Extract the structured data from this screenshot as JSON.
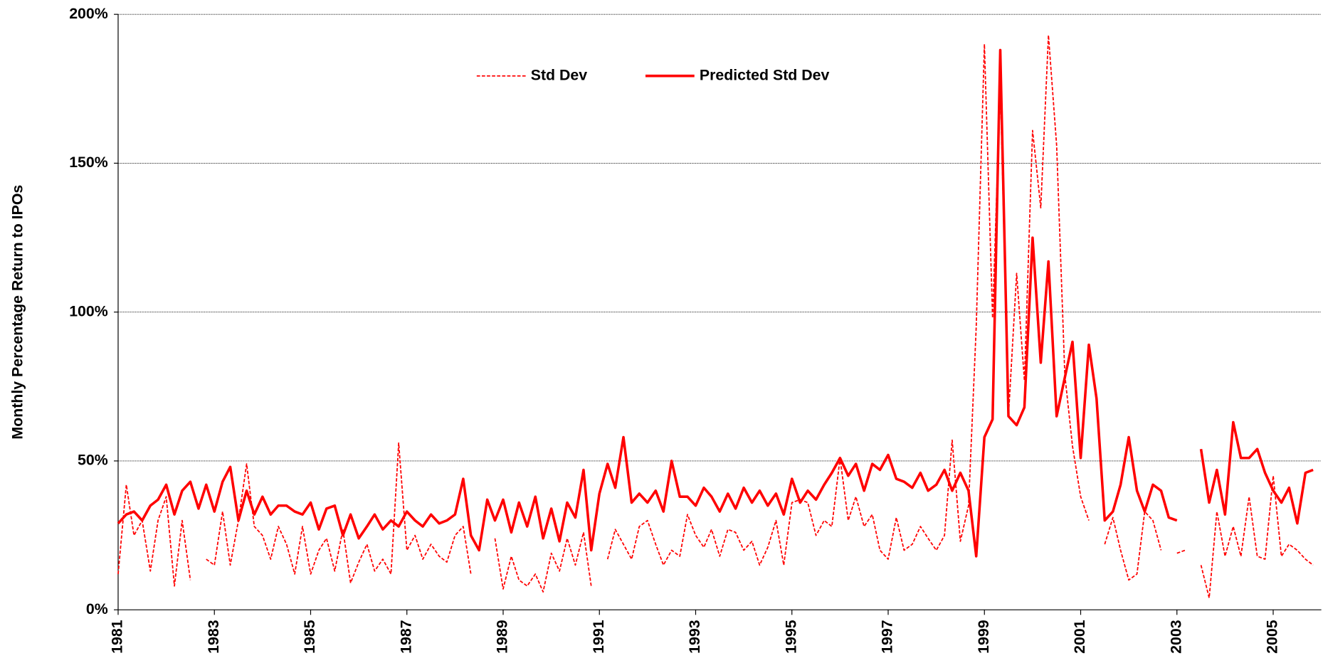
{
  "chart_data": {
    "type": "line",
    "y_label": "Monthly Percentage Return to IPOs",
    "ylim": [
      0,
      200
    ],
    "yticks": [
      {
        "value": 0,
        "label": "0%"
      },
      {
        "value": 50,
        "label": "50%"
      },
      {
        "value": 100,
        "label": "100%"
      },
      {
        "value": 150,
        "label": "150%"
      },
      {
        "value": 200,
        "label": "200%"
      }
    ],
    "xlim": [
      1981,
      2006
    ],
    "xticks": [
      1981,
      1983,
      1985,
      1987,
      1989,
      1991,
      1993,
      1995,
      1997,
      1999,
      2001,
      2003,
      2005
    ],
    "grid": true,
    "legend": "top",
    "x": [
      1981,
      1981.17,
      1981.33,
      1981.5,
      1981.67,
      1981.83,
      1982,
      1982.17,
      1982.33,
      1982.5,
      1982.67,
      1982.83,
      1983,
      1983.17,
      1983.33,
      1983.5,
      1983.67,
      1983.83,
      1984,
      1984.17,
      1984.33,
      1984.5,
      1984.67,
      1984.83,
      1985,
      1985.17,
      1985.33,
      1985.5,
      1985.67,
      1985.83,
      1986,
      1986.17,
      1986.33,
      1986.5,
      1986.67,
      1986.83,
      1987,
      1987.17,
      1987.33,
      1987.5,
      1987.67,
      1987.83,
      1988,
      1988.17,
      1988.33,
      1988.5,
      1988.67,
      1988.83,
      1989,
      1989.17,
      1989.33,
      1989.5,
      1989.67,
      1989.83,
      1990,
      1990.17,
      1990.33,
      1990.5,
      1990.67,
      1990.83,
      1991,
      1991.17,
      1991.33,
      1991.5,
      1991.67,
      1991.83,
      1992,
      1992.17,
      1992.33,
      1992.5,
      1992.67,
      1992.83,
      1993,
      1993.17,
      1993.33,
      1993.5,
      1993.67,
      1993.83,
      1994,
      1994.17,
      1994.33,
      1994.5,
      1994.67,
      1994.83,
      1995,
      1995.17,
      1995.33,
      1995.5,
      1995.67,
      1995.83,
      1996,
      1996.17,
      1996.33,
      1996.5,
      1996.67,
      1996.83,
      1997,
      1997.17,
      1997.33,
      1997.5,
      1997.67,
      1997.83,
      1998,
      1998.17,
      1998.33,
      1998.5,
      1998.67,
      1998.83,
      1999,
      1999.17,
      1999.33,
      1999.5,
      1999.67,
      1999.83,
      2000,
      2000.17,
      2000.33,
      2000.5,
      2000.67,
      2000.83,
      2001,
      2001.17,
      2001.33,
      2001.5,
      2001.67,
      2001.83,
      2002,
      2002.17,
      2002.33,
      2002.5,
      2002.67,
      2002.83,
      2003,
      2003.17,
      2003.33,
      2003.5,
      2003.67,
      2003.83,
      2004,
      2004.17,
      2004.33,
      2004.5,
      2004.67,
      2004.83,
      2005,
      2005.17,
      2005.33,
      2005.5,
      2005.67,
      2005.83
    ],
    "series": [
      {
        "name": "Std Dev",
        "color": "#ff0000",
        "line_style": "dashed",
        "values": [
          12,
          42,
          25,
          30,
          13,
          30,
          38,
          8,
          30,
          10,
          null,
          17,
          15,
          33,
          15,
          30,
          49,
          28,
          25,
          17,
          28,
          22,
          12,
          28,
          12,
          20,
          24,
          13,
          27,
          9,
          16,
          22,
          13,
          17,
          12,
          56,
          20,
          25,
          17,
          22,
          18,
          16,
          25,
          28,
          12,
          null,
          null,
          24,
          7,
          18,
          10,
          8,
          12,
          6,
          19,
          13,
          24,
          15,
          26,
          8,
          null,
          17,
          27,
          22,
          17,
          28,
          30,
          22,
          15,
          20,
          18,
          32,
          25,
          21,
          27,
          18,
          27,
          26,
          20,
          23,
          15,
          21,
          30,
          15,
          36,
          37,
          36,
          25,
          30,
          28,
          51,
          30,
          38,
          28,
          32,
          20,
          17,
          31,
          20,
          22,
          28,
          24,
          20,
          25,
          57,
          23,
          35,
          95,
          190,
          98,
          177,
          65,
          113,
          77,
          161,
          135,
          193,
          156,
          79,
          55,
          38,
          30,
          null,
          22,
          31,
          20,
          10,
          12,
          33,
          30,
          20,
          null,
          19,
          20,
          null,
          15,
          4,
          33,
          18,
          28,
          18,
          38,
          18,
          17,
          45,
          18,
          22,
          20,
          17,
          15
        ]
      },
      {
        "name": "Predicted Std Dev",
        "color": "#ff0000",
        "line_style": "solid",
        "values": [
          29,
          32,
          33,
          30,
          35,
          37,
          42,
          32,
          40,
          43,
          34,
          42,
          33,
          43,
          48,
          30,
          40,
          32,
          38,
          32,
          35,
          35,
          33,
          32,
          36,
          27,
          34,
          35,
          25,
          32,
          24,
          28,
          32,
          27,
          30,
          28,
          33,
          30,
          28,
          32,
          29,
          30,
          32,
          44,
          25,
          20,
          37,
          30,
          37,
          26,
          36,
          28,
          38,
          24,
          34,
          23,
          36,
          31,
          47,
          20,
          39,
          49,
          41,
          58,
          36,
          39,
          36,
          40,
          33,
          50,
          38,
          38,
          35,
          41,
          38,
          33,
          39,
          34,
          41,
          36,
          40,
          35,
          39,
          32,
          44,
          36,
          40,
          37,
          42,
          46,
          51,
          45,
          49,
          40,
          49,
          47,
          52,
          44,
          43,
          41,
          46,
          40,
          42,
          47,
          40,
          46,
          40,
          18,
          58,
          64,
          188,
          65,
          62,
          68,
          125,
          83,
          117,
          65,
          78,
          90,
          51,
          89,
          71,
          30,
          33,
          42,
          58,
          40,
          33,
          42,
          40,
          31,
          30,
          null,
          null,
          54,
          36,
          47,
          32,
          63,
          51,
          51,
          54,
          46,
          40,
          36,
          41,
          29,
          46,
          47
        ]
      }
    ]
  }
}
